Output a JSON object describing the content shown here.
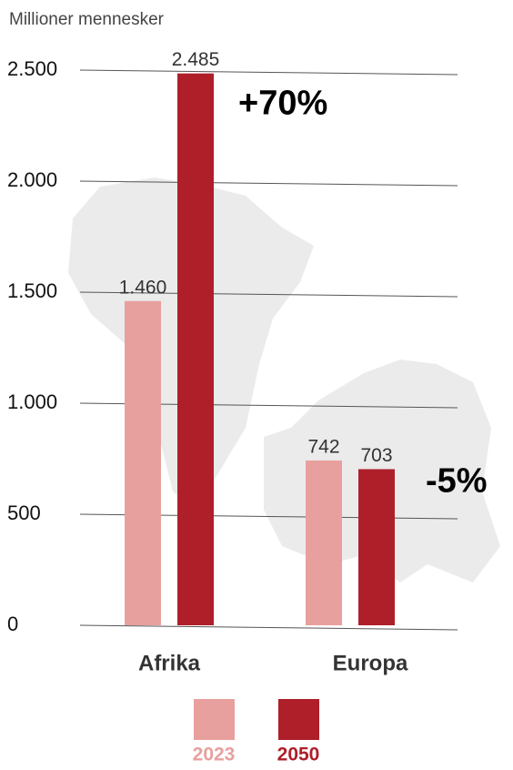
{
  "chart_data": {
    "type": "bar",
    "y_label": "Millioner mennesker",
    "categories": [
      "Afrika",
      "Europa"
    ],
    "series": [
      {
        "name": "2023",
        "color": "#e8a09e",
        "values": [
          1460,
          742
        ],
        "value_labels": [
          "1.460",
          "742"
        ]
      },
      {
        "name": "2050",
        "color": "#ae1f2a",
        "values": [
          2485,
          703
        ],
        "value_labels": [
          "2.485",
          "703"
        ]
      }
    ],
    "annotations": [
      "+70%",
      "-5%"
    ],
    "ylim": [
      0,
      2500
    ],
    "yticks": [
      0,
      500,
      {
        "value": 1000,
        "label": "1.000"
      },
      {
        "value": 1500,
        "label": "1.500"
      },
      {
        "value": 2000,
        "label": "2.000"
      },
      {
        "value": 2500,
        "label": "2.500"
      }
    ],
    "grid": true
  }
}
